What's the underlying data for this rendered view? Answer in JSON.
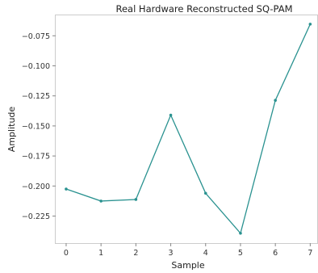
{
  "chart_data": {
    "type": "line",
    "title": "Real Hardware Reconstructed SQ-PAM",
    "xlabel": "Sample",
    "ylabel": "Amplitude",
    "x": [
      0,
      1,
      2,
      3,
      4,
      5,
      6,
      7
    ],
    "series": [
      {
        "values": [
          -0.2025,
          -0.2125,
          -0.2112,
          -0.141,
          -0.206,
          -0.2393,
          -0.1287,
          -0.0653
        ],
        "color": "#2a9290"
      }
    ],
    "xlim": [
      -0.3,
      7.2
    ],
    "ylim": [
      -0.2475,
      -0.058
    ],
    "xticks": [
      0,
      1,
      2,
      3,
      4,
      5,
      6,
      7
    ],
    "yticks": [
      -0.225,
      -0.2,
      -0.175,
      -0.15,
      -0.125,
      -0.1,
      -0.075
    ],
    "ytick_labels": [
      "−0.225",
      "−0.200",
      "−0.175",
      "−0.150",
      "−0.125",
      "−0.100",
      "−0.075"
    ],
    "grid": false,
    "legend": "none"
  }
}
